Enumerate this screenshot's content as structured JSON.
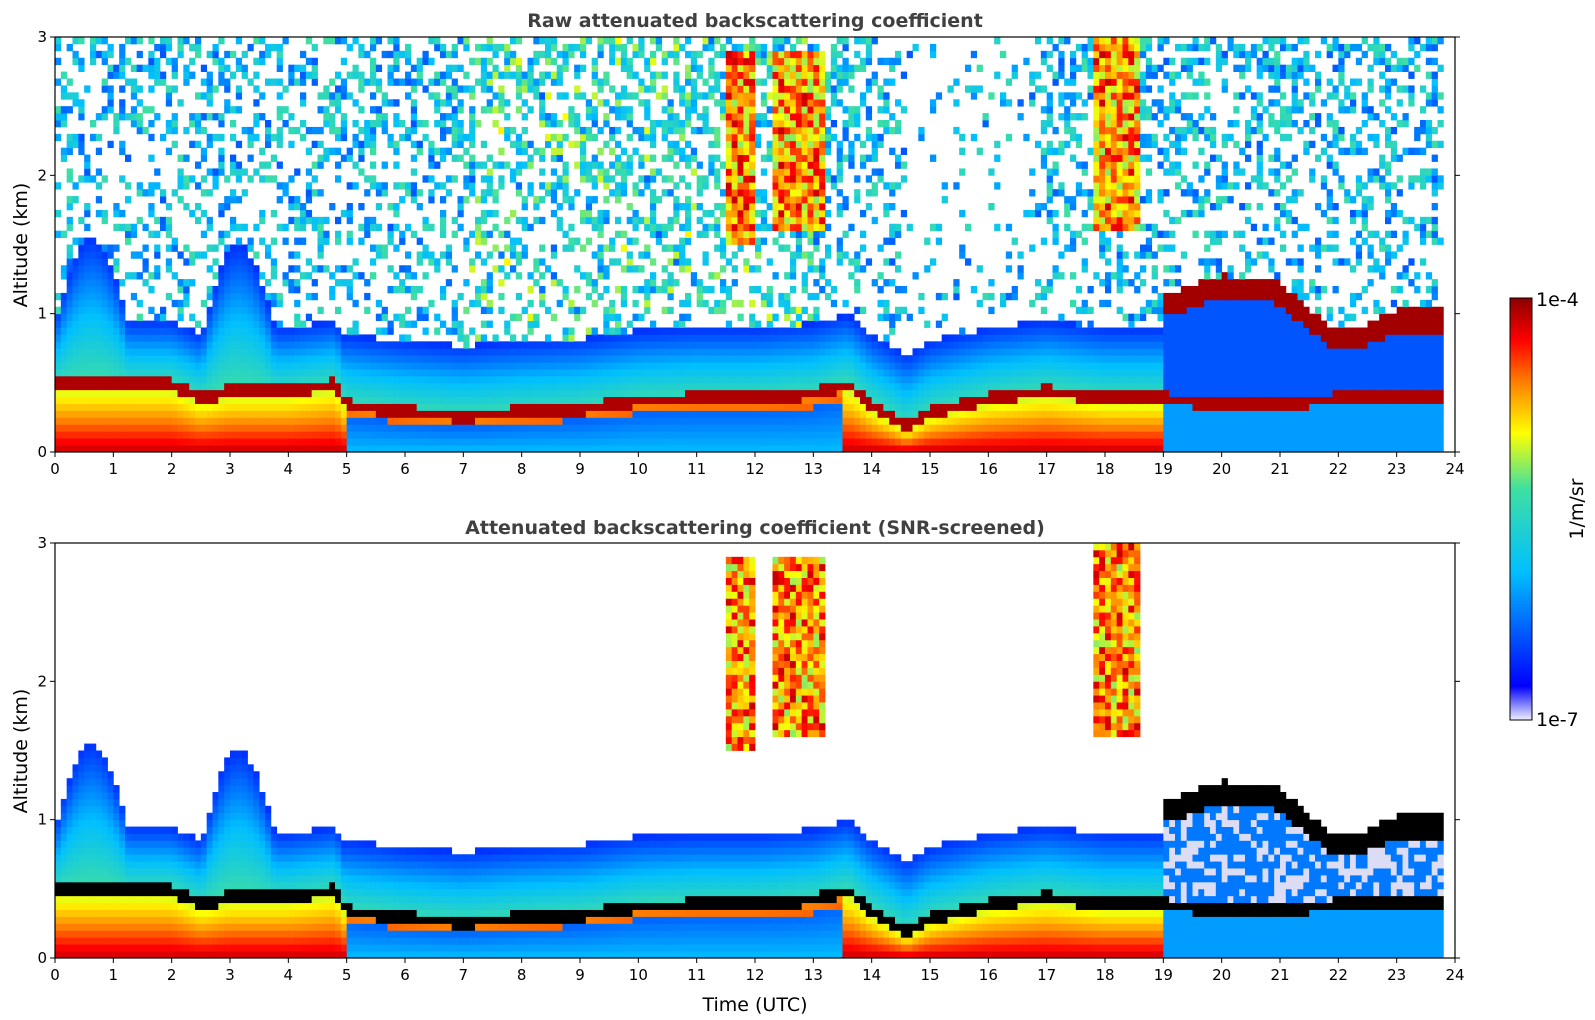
{
  "chart_data": [
    {
      "type": "heatmap",
      "title": "Raw attenuated backscattering coefficient",
      "xlabel": "",
      "ylabel": "Altitude (km)",
      "xlim": [
        0,
        24
      ],
      "ylim": [
        0,
        3
      ],
      "xticks": [
        0,
        1,
        2,
        3,
        4,
        5,
        6,
        7,
        8,
        9,
        10,
        11,
        12,
        13,
        14,
        15,
        16,
        17,
        18,
        19,
        20,
        21,
        22,
        23,
        24
      ],
      "yticks": [
        0,
        1,
        2,
        3
      ],
      "screened": false,
      "boundary_layer_top_km": [
        [
          0,
          0.45
        ],
        [
          1,
          0.45
        ],
        [
          2,
          0.45
        ],
        [
          2.5,
          0.35
        ],
        [
          3,
          0.4
        ],
        [
          4,
          0.4
        ],
        [
          4.8,
          0.45
        ],
        [
          5,
          0.3
        ],
        [
          6,
          0.25
        ],
        [
          7,
          0.22
        ],
        [
          8,
          0.25
        ],
        [
          9,
          0.27
        ],
        [
          10,
          0.33
        ],
        [
          11,
          0.35
        ],
        [
          12,
          0.35
        ],
        [
          13,
          0.38
        ],
        [
          13.6,
          0.45
        ],
        [
          14,
          0.3
        ],
        [
          14.6,
          0.15
        ],
        [
          15,
          0.25
        ],
        [
          16,
          0.35
        ],
        [
          17,
          0.4
        ],
        [
          18,
          0.35
        ],
        [
          19,
          0.35
        ],
        [
          20,
          0.3
        ],
        [
          21,
          0.3
        ],
        [
          22,
          0.35
        ],
        [
          23,
          0.35
        ],
        [
          23.8,
          0.35
        ]
      ],
      "cloud_layer_km": [
        [
          19,
          1.05
        ],
        [
          20,
          1.2
        ],
        [
          21,
          1.15
        ],
        [
          21.5,
          0.95
        ],
        [
          22,
          0.8
        ],
        [
          22.5,
          0.85
        ],
        [
          23,
          0.95
        ],
        [
          23.8,
          0.95
        ]
      ],
      "cirrus": [
        {
          "x": [
            11.5,
            12.0
          ],
          "y": [
            1.5,
            2.9
          ]
        },
        {
          "x": [
            12.3,
            13.2
          ],
          "y": [
            1.6,
            2.9
          ]
        },
        {
          "x": [
            17.8,
            18.6
          ],
          "y": [
            1.6,
            3.0
          ]
        }
      ]
    },
    {
      "type": "heatmap",
      "title": "Attenuated backscattering coefficient (SNR-screened)",
      "xlabel": "Time (UTC)",
      "ylabel": "Altitude (km)",
      "xlim": [
        0,
        24
      ],
      "ylim": [
        0,
        3
      ],
      "xticks": [
        0,
        1,
        2,
        3,
        4,
        5,
        6,
        7,
        8,
        9,
        10,
        11,
        12,
        13,
        14,
        15,
        16,
        17,
        18,
        19,
        20,
        21,
        22,
        23,
        24
      ],
      "yticks": [
        0,
        1,
        2,
        3
      ],
      "screened": true
    }
  ],
  "colorbar": {
    "max_label": "1e-4",
    "min_label": "1e-7",
    "unit": "1/m/sr",
    "colors": [
      "#f0f0ff",
      "#0000ff",
      "#00bfff",
      "#40e0a0",
      "#ffff00",
      "#ff8000",
      "#ff0000",
      "#8b0000"
    ]
  }
}
